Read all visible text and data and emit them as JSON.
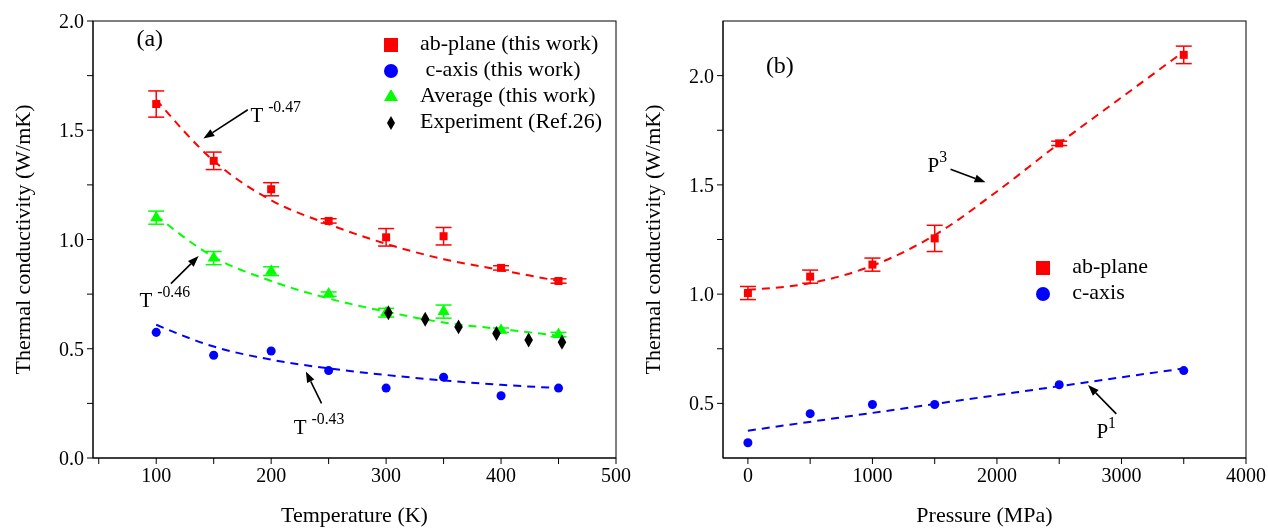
{
  "chart_data": [
    {
      "type": "scatter",
      "xlabel": "Temperature (K)",
      "ylabel": "Thermal conductivity (W/mK)",
      "xlim": [
        45,
        500
      ],
      "ylim": [
        0,
        2
      ],
      "xticks": [
        {
          "value": 50,
          "label": null
        },
        100,
        {
          "value": 150,
          "label": null
        },
        200,
        {
          "value": 250,
          "label": null
        },
        300,
        {
          "value": 350,
          "label": null
        },
        400,
        {
          "value": 450,
          "label": null
        },
        500
      ],
      "yticks": [
        {
          "value": 0,
          "label": "0.0"
        },
        {
          "value": 0.25,
          "label": null
        },
        {
          "value": 0.5,
          "label": "0.5"
        },
        {
          "value": 0.75,
          "label": null
        },
        {
          "value": 1,
          "label": "1.0"
        },
        {
          "value": 1.25,
          "label": null
        },
        {
          "value": 1.5,
          "label": "1.5"
        },
        {
          "value": 1.75,
          "label": null
        },
        {
          "value": 2,
          "label": "2.0"
        }
      ],
      "grid": false,
      "legend": "top right",
      "x": [
        100,
        150,
        200,
        250,
        300,
        350,
        400,
        450
      ],
      "series": [
        {
          "name": "ab-plane (this work)",
          "color": "#ff0000",
          "marker": "square",
          "values": [
            1.62,
            1.36,
            1.23,
            1.085,
            1.01,
            1.015,
            0.87,
            0.81
          ],
          "errors": [
            0.06,
            0.04,
            0.03,
            0.01,
            0.04,
            0.04,
            0.01,
            0.01
          ]
        },
        {
          "name": " c-axis (this work)",
          "color": "#0000ff",
          "marker": "circle",
          "values": [
            0.575,
            0.47,
            0.49,
            0.4,
            0.32,
            0.37,
            0.285,
            0.32
          ]
        },
        {
          "name": "Average (this work)",
          "color": "#00ff00",
          "marker": "triangle",
          "values": [
            1.1,
            0.915,
            0.855,
            0.75,
            0.665,
            0.67,
            0.585,
            0.565
          ],
          "errors": [
            0.03,
            0.03,
            0.02,
            0.01,
            0.02,
            0.03,
            0.01,
            0.01
          ]
        },
        {
          "name": "Experiment (Ref.26)",
          "color": "#000000",
          "marker": "diamond",
          "x": [
            302,
            334,
            363,
            396,
            424,
            453
          ],
          "values": [
            0.665,
            0.635,
            0.6,
            0.57,
            0.54,
            0.53
          ]
        },
        {
          "type": "line",
          "color": "#ff0000",
          "line_style": "dashed",
          "values": [
            1.64,
            1.36,
            1.18,
            1.07,
            0.98,
            0.91,
            0.86,
            0.81
          ]
        },
        {
          "type": "line",
          "color": "#0000ff",
          "line_style": "dashed",
          "values": [
            0.61,
            0.51,
            0.45,
            0.41,
            0.38,
            0.355,
            0.335,
            0.32
          ]
        },
        {
          "type": "line",
          "color": "#00ff00",
          "line_style": "dashed",
          "values": [
            1.11,
            0.92,
            0.81,
            0.73,
            0.67,
            0.62,
            0.59,
            0.56
          ]
        }
      ],
      "annotations": [
        "(a)",
        "T $^{-0.47}$",
        "T $^{-0.46}$",
        "T $^{-0.43}$"
      ]
    },
    {
      "type": "scatter",
      "xlabel": "Pressure (MPa)",
      "ylabel": "Thermal conductivity (W/mK)",
      "xlim": [
        -200,
        4000
      ],
      "ylim": [
        0.25,
        2.25
      ],
      "xticks": [
        0,
        {
          "value": 500,
          "label": null
        },
        1000,
        {
          "value": 1500,
          "label": null
        },
        2000,
        {
          "value": 2500,
          "label": null
        },
        3000,
        {
          "value": 3500,
          "label": null
        },
        4000
      ],
      "yticks": [
        {
          "value": 0.5,
          "label": "0.5"
        },
        {
          "value": 0.75,
          "label": null
        },
        {
          "value": 1,
          "label": "1.0"
        },
        {
          "value": 1.25,
          "label": null
        },
        {
          "value": 1.5,
          "label": "1.5"
        },
        {
          "value": 1.75,
          "label": null
        },
        {
          "value": 2,
          "label": "2.0"
        }
      ],
      "grid": false,
      "legend": "right",
      "x": [
        0,
        500,
        1000,
        1500,
        2500,
        3500
      ],
      "series": [
        {
          "name": "ab-plane",
          "color": "#ff0000",
          "marker": "square",
          "values": [
            1.005,
            1.08,
            1.135,
            1.255,
            1.69,
            2.095
          ],
          "errors": [
            0.03,
            0.03,
            0.03,
            0.06,
            0.01,
            0.04
          ]
        },
        {
          "name": "c-axis",
          "color": "#0000ff",
          "marker": "circle",
          "values": [
            0.32,
            0.453,
            0.495,
            0.495,
            0.585,
            0.65
          ]
        },
        {
          "type": "line",
          "color": "#ff0000",
          "line_style": "dashed",
          "x": [
            0,
            500,
            1000,
            1500,
            2000,
            2500,
            3000,
            3500
          ],
          "values": [
            1.02,
            1.05,
            1.13,
            1.27,
            1.47,
            1.69,
            1.9,
            2.11
          ]
        },
        {
          "type": "line",
          "color": "#0000ff",
          "line_style": "dashed",
          "x": [
            0,
            3500
          ],
          "values": [
            0.375,
            0.66
          ]
        }
      ],
      "annotations": [
        "(b)",
        "P$^{3}$",
        "P$^{1}$"
      ]
    }
  ]
}
